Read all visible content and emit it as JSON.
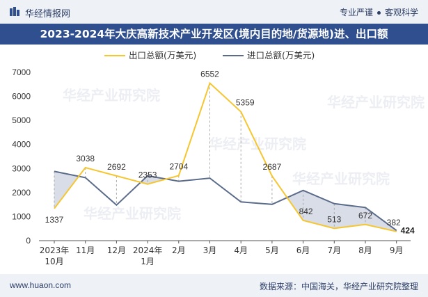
{
  "header": {
    "brand": "华经情报网",
    "slogan_left": "专业严谨",
    "slogan_right": "客观科学"
  },
  "title": "2023-2024年大庆高新技术产业开发区(境内目的地/货源地)进、出口额",
  "footer": {
    "site": "www.huaon.com",
    "source": "数据来源：中国海关，华经产业研究院整理"
  },
  "watermark": "华经产业研究院",
  "colors": {
    "export": "#f6c630",
    "import": "#5b6b8a",
    "title_bg": "#2f4f8f"
  },
  "chart_data": {
    "type": "line",
    "categories": [
      [
        "2023年",
        "10月"
      ],
      [
        "11月"
      ],
      [
        "12月"
      ],
      [
        "2024年",
        "1月"
      ],
      [
        "2月"
      ],
      [
        "3月"
      ],
      [
        "4月"
      ],
      [
        "5月"
      ],
      [
        "6月"
      ],
      [
        "7月"
      ],
      [
        "8月"
      ],
      [
        "9月"
      ]
    ],
    "series": [
      {
        "name": "出口总额(万美元)",
        "values": [
          1337,
          3038,
          2692,
          2353,
          2704,
          6552,
          5359,
          2687,
          842,
          513,
          672,
          382
        ],
        "labels": [
          "1337",
          "3038",
          "2692",
          "2353",
          "2704",
          "6552",
          "5359",
          "2687",
          "842",
          "513",
          "672",
          "382"
        ]
      },
      {
        "name": "进口总额(万美元)",
        "values": [
          2880,
          2620,
          1480,
          2700,
          2470,
          2600,
          1610,
          1510,
          2090,
          1540,
          1380,
          424
        ],
        "labels": [
          "",
          "",
          "",
          "",
          "",
          "",
          "",
          "",
          "",
          "",
          "",
          "424"
        ]
      }
    ],
    "yticks": [
      0,
      1000,
      2000,
      3000,
      4000,
      5000,
      6000,
      7000
    ],
    "ylim": [
      0,
      7000
    ],
    "legend_position": "top",
    "grid": false
  }
}
